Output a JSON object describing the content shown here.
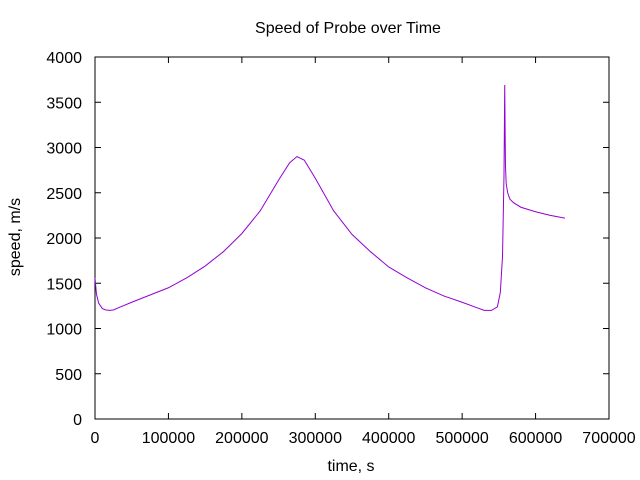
{
  "chart_data": {
    "type": "line",
    "title": "Speed of Probe over Time",
    "xlabel": "time, s",
    "ylabel": "speed, m/s",
    "xlim": [
      0,
      700000
    ],
    "ylim": [
      0,
      4000
    ],
    "xticks": [
      0,
      100000,
      200000,
      300000,
      400000,
      500000,
      600000,
      700000
    ],
    "yticks": [
      0,
      500,
      1000,
      1500,
      2000,
      2500,
      3000,
      3500,
      4000
    ],
    "grid": false,
    "legend": "none",
    "series": [
      {
        "color": "#9400d3",
        "x": [
          0,
          2000,
          5000,
          10000,
          15000,
          20000,
          25000,
          35000,
          50000,
          75000,
          100000,
          125000,
          150000,
          175000,
          200000,
          225000,
          250000,
          265000,
          275000,
          285000,
          300000,
          325000,
          350000,
          375000,
          400000,
          425000,
          450000,
          475000,
          500000,
          520000,
          530000,
          540000,
          548000,
          552000,
          555000,
          557000,
          558000,
          558500,
          559000,
          560000,
          562000,
          565000,
          570000,
          580000,
          600000,
          620000,
          640000
        ],
        "y": [
          1560,
          1380,
          1280,
          1220,
          1205,
          1200,
          1205,
          1240,
          1290,
          1370,
          1450,
          1560,
          1690,
          1850,
          2050,
          2300,
          2640,
          2830,
          2900,
          2860,
          2660,
          2300,
          2040,
          1850,
          1680,
          1560,
          1450,
          1360,
          1290,
          1230,
          1200,
          1200,
          1240,
          1400,
          1800,
          2700,
          3690,
          3200,
          2800,
          2600,
          2500,
          2430,
          2390,
          2340,
          2290,
          2250,
          2220
        ]
      }
    ]
  }
}
